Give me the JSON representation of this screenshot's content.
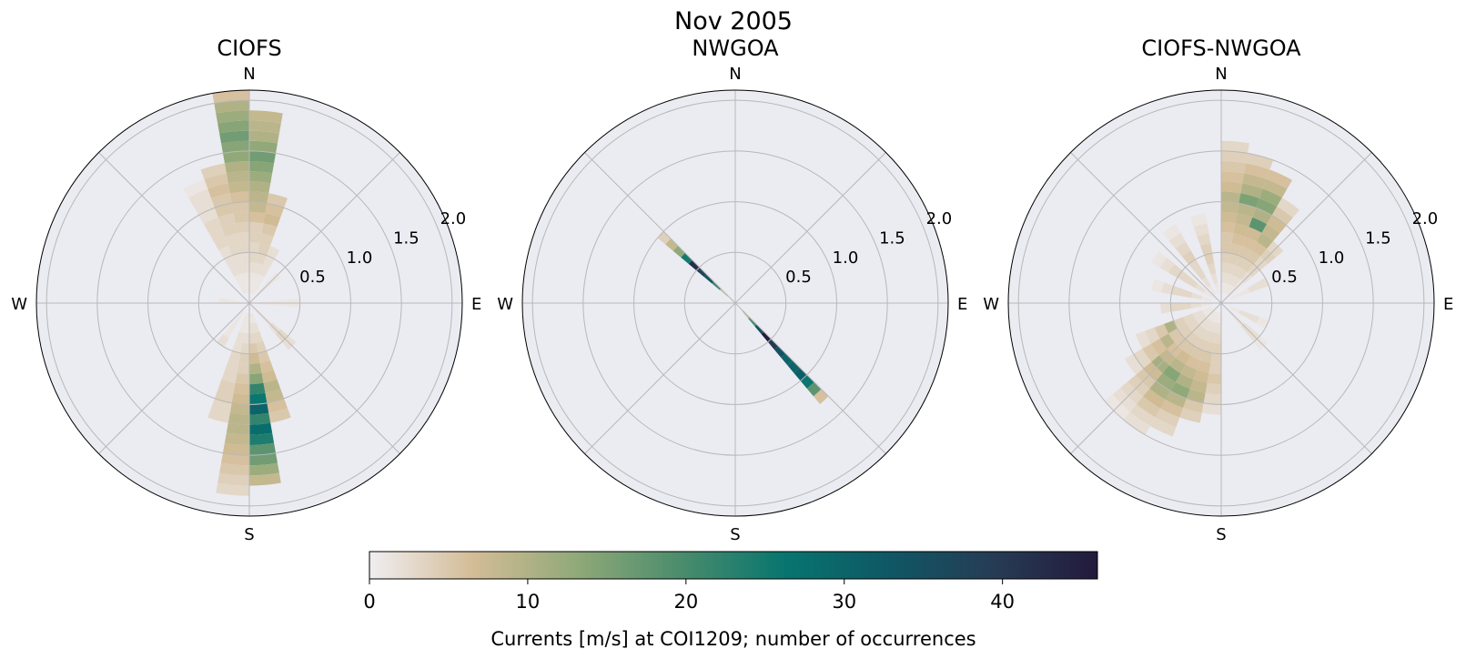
{
  "figure": {
    "suptitle": "Nov 2005",
    "colorbar_label": "Currents [m/s] at COI1209; number of occurrences"
  },
  "colors": {
    "axes_bg": "#ebebf2",
    "grid": "#b8b8b8",
    "cmap_stops": [
      "#f0eef1",
      "#d3bc96",
      "#90a978",
      "#4a8c6c",
      "#07756f",
      "#0f5764",
      "#263c55",
      "#231a3c"
    ]
  },
  "chart_data": [
    {
      "type": "windrose-histogram",
      "title": "CIOFS",
      "compass_labels": [
        "N",
        "E",
        "S",
        "W"
      ],
      "r_tick_labels": [
        "0.5",
        "1.0",
        "1.5",
        "2.0"
      ],
      "rlim": [
        0,
        2.1
      ],
      "grid": true,
      "direction_bin_width_deg": 10,
      "speed_bin_width": 0.1,
      "bins": [
        {
          "dir": 355,
          "counts": [
            0,
            1,
            1,
            2,
            2,
            3,
            3,
            4,
            5,
            5,
            6,
            8,
            9,
            10,
            13,
            14,
            16,
            14,
            12,
            10,
            6
          ]
        },
        {
          "dir": 5,
          "counts": [
            0,
            1,
            1,
            2,
            3,
            3,
            4,
            4,
            6,
            8,
            9,
            10,
            12,
            14,
            16,
            13,
            10,
            9,
            8
          ]
        },
        {
          "dir": 15,
          "counts": [
            0,
            1,
            1,
            2,
            3,
            4,
            4,
            5,
            7,
            6,
            5
          ]
        },
        {
          "dir": 25,
          "counts": [
            0,
            1,
            1,
            2,
            2,
            2
          ]
        },
        {
          "dir": 45,
          "counts": [
            0,
            1,
            1,
            1
          ]
        },
        {
          "dir": 90,
          "counts": [
            0,
            1,
            1,
            1,
            1
          ]
        },
        {
          "dir": 135,
          "counts": [
            0,
            1,
            1,
            2,
            3,
            2
          ]
        },
        {
          "dir": 165,
          "counts": [
            0,
            1,
            2,
            3,
            4,
            5,
            6,
            7,
            9,
            8,
            6,
            5
          ]
        },
        {
          "dir": 175,
          "counts": [
            0,
            1,
            2,
            3,
            5,
            7,
            10,
            14,
            22,
            26,
            30,
            22,
            28,
            24,
            18,
            16,
            12,
            8
          ]
        },
        {
          "dir": 185,
          "counts": [
            0,
            1,
            1,
            2,
            3,
            4,
            4,
            5,
            6,
            7,
            8,
            9,
            9,
            8,
            7,
            6,
            5,
            4,
            3
          ]
        },
        {
          "dir": 195,
          "counts": [
            0,
            1,
            1,
            2,
            2,
            3,
            3,
            3,
            4,
            4,
            3,
            3
          ]
        },
        {
          "dir": 215,
          "counts": [
            0,
            1,
            1,
            1,
            2
          ]
        },
        {
          "dir": 275,
          "counts": [
            0,
            1,
            1
          ]
        },
        {
          "dir": 335,
          "counts": [
            0,
            1,
            1,
            2,
            2,
            2,
            3,
            3,
            3,
            2,
            2,
            2,
            1
          ]
        },
        {
          "dir": 345,
          "counts": [
            0,
            1,
            1,
            2,
            2,
            3,
            3,
            4,
            4,
            5,
            5,
            6,
            5,
            4
          ]
        }
      ]
    },
    {
      "type": "windrose-histogram",
      "title": "NWGOA",
      "compass_labels": [
        "N",
        "E",
        "S",
        "W"
      ],
      "r_tick_labels": [
        "0.5",
        "1.0",
        "1.5",
        "2.0"
      ],
      "rlim": [
        0,
        2.1
      ],
      "grid": true,
      "direction_bin_width_deg": 5,
      "speed_bin_width": 0.1,
      "bins": [
        {
          "dir": 137.5,
          "counts": [
            0,
            8,
            20,
            35,
            46,
            40,
            34,
            30,
            30,
            31,
            26,
            18,
            6
          ]
        },
        {
          "dir": 312.5,
          "counts": [
            0,
            6,
            22,
            34,
            38,
            42,
            25,
            13,
            8,
            4
          ]
        }
      ]
    },
    {
      "type": "windrose-histogram",
      "title": "CIOFS-NWGOA",
      "compass_labels": [
        "N",
        "E",
        "S",
        "W"
      ],
      "r_tick_labels": [
        "0.5",
        "1.0",
        "1.5",
        "2.0"
      ],
      "rlim": [
        0,
        2.1
      ],
      "grid": true,
      "direction_bin_width_deg": 10,
      "speed_bin_width": 0.1,
      "bins": [
        {
          "dir": 5,
          "counts": [
            0,
            1,
            2,
            3,
            4,
            5,
            5,
            6,
            7,
            8,
            9,
            7,
            6,
            5,
            4,
            3
          ]
        },
        {
          "dir": 15,
          "counts": [
            0,
            1,
            2,
            3,
            4,
            5,
            6,
            7,
            8,
            9,
            15,
            10,
            8,
            6,
            4
          ]
        },
        {
          "dir": 25,
          "counts": [
            0,
            1,
            2,
            3,
            4,
            5,
            6,
            7,
            18,
            10,
            14,
            12,
            8,
            6
          ]
        },
        {
          "dir": 35,
          "counts": [
            0,
            1,
            2,
            3,
            4,
            5,
            6,
            9,
            8,
            7,
            5,
            3
          ]
        },
        {
          "dir": 45,
          "counts": [
            0,
            1,
            1,
            2,
            3,
            3,
            4,
            3
          ]
        },
        {
          "dir": 65,
          "counts": [
            0,
            1,
            1,
            2,
            2
          ]
        },
        {
          "dir": 115,
          "counts": [
            0,
            1,
            2,
            2,
            1
          ]
        },
        {
          "dir": 135,
          "counts": [
            0,
            1,
            1,
            2,
            2,
            1
          ]
        },
        {
          "dir": 185,
          "counts": [
            0,
            1,
            2,
            3,
            4,
            4,
            4,
            5,
            4,
            3,
            2
          ]
        },
        {
          "dir": 195,
          "counts": [
            0,
            1,
            2,
            3,
            4,
            5,
            6,
            7,
            8,
            9,
            5,
            4
          ]
        },
        {
          "dir": 205,
          "counts": [
            0,
            1,
            2,
            3,
            4,
            5,
            6,
            8,
            10,
            13,
            9,
            6,
            4,
            3
          ]
        },
        {
          "dir": 215,
          "counts": [
            0,
            1,
            2,
            3,
            4,
            5,
            7,
            9,
            14,
            12,
            10,
            7,
            5,
            3,
            2
          ]
        },
        {
          "dir": 225,
          "counts": [
            0,
            1,
            2,
            3,
            4,
            5,
            6,
            8,
            11,
            7,
            5,
            4,
            3,
            2,
            1
          ]
        },
        {
          "dir": 235,
          "counts": [
            0,
            1,
            2,
            3,
            4,
            5,
            9,
            6,
            5,
            3,
            2
          ]
        },
        {
          "dir": 245,
          "counts": [
            0,
            1,
            2,
            3,
            4,
            10,
            5,
            3,
            2
          ]
        },
        {
          "dir": 265,
          "counts": [
            0,
            1,
            2,
            3,
            3,
            2
          ]
        },
        {
          "dir": 285,
          "counts": [
            0,
            1,
            2,
            3,
            3,
            2,
            1
          ]
        },
        {
          "dir": 305,
          "counts": [
            0,
            1,
            2,
            3,
            3,
            3,
            2,
            1
          ]
        },
        {
          "dir": 325,
          "counts": [
            0,
            1,
            2,
            3,
            3,
            4,
            3,
            2,
            1
          ]
        },
        {
          "dir": 345,
          "counts": [
            0,
            1,
            2,
            3,
            4,
            4,
            3,
            2,
            1
          ]
        }
      ]
    },
    {
      "type": "colorbar",
      "orientation": "horizontal",
      "range": [
        0,
        46
      ],
      "ticks": [
        0,
        10,
        20,
        30,
        40
      ],
      "tick_labels": [
        "0",
        "10",
        "20",
        "30",
        "40"
      ],
      "label": "Currents [m/s] at COI1209; number of occurrences"
    }
  ]
}
